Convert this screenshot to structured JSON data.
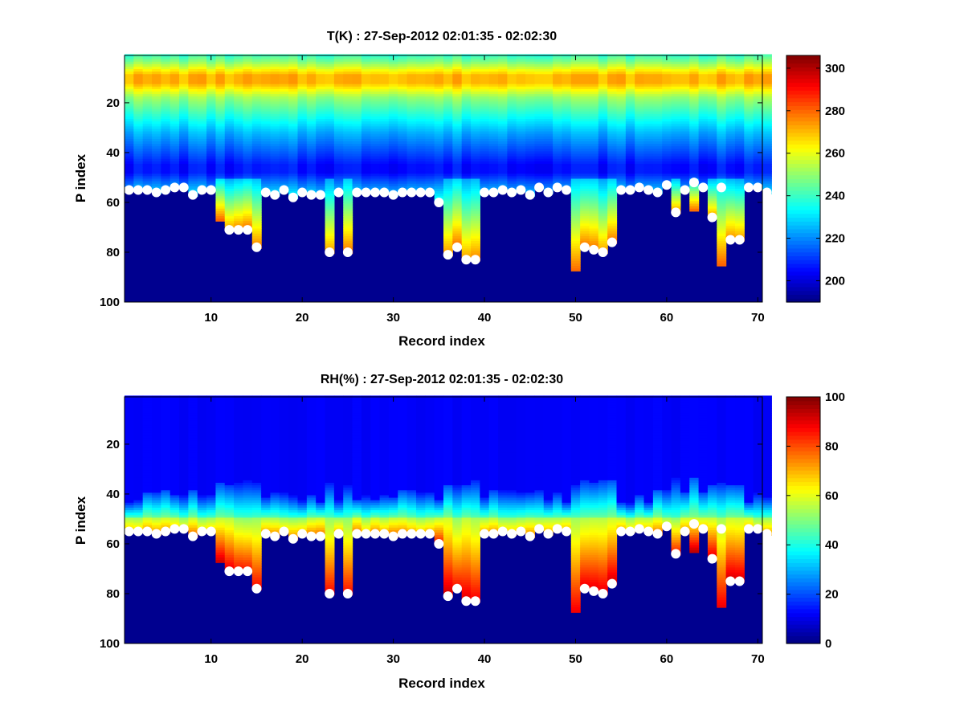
{
  "colormap": "jet",
  "mask_color": "#00008f",
  "marker_color": "#ffffff",
  "chart_data": [
    {
      "type": "heatmap",
      "title": "T(K) : 27-Sep-2012 02:01:35 - 02:02:30",
      "xlabel": "Record index",
      "ylabel": "P index",
      "x_ticks": [
        10,
        20,
        30,
        40,
        50,
        60,
        70
      ],
      "y_ticks": [
        20,
        40,
        60,
        80,
        100
      ],
      "xlim": [
        0.5,
        70.5
      ],
      "ylim": [
        1,
        100
      ],
      "y_reversed": true,
      "colorbar": {
        "min": 190,
        "max": 306,
        "ticks": [
          200,
          220,
          240,
          260,
          280,
          300
        ]
      },
      "surface_index": [
        55,
        55,
        55,
        56,
        55,
        54,
        54,
        57,
        55,
        55,
        67,
        71,
        71,
        71,
        78,
        56,
        57,
        55,
        58,
        56,
        57,
        57,
        80,
        56,
        80,
        56,
        56,
        56,
        56,
        57,
        56,
        56,
        56,
        56,
        60,
        81,
        78,
        83,
        83,
        56,
        56,
        55,
        56,
        55,
        57,
        54,
        56,
        54,
        55,
        87,
        78,
        79,
        80,
        76,
        55,
        55,
        54,
        55,
        56,
        53,
        64,
        55,
        63,
        54,
        66,
        85,
        75,
        75,
        54,
        54,
        56
      ],
      "marker_index": [
        55,
        55,
        55,
        56,
        55,
        54,
        54,
        57,
        55,
        55,
        null,
        71,
        71,
        71,
        78,
        56,
        57,
        55,
        58,
        56,
        57,
        57,
        80,
        56,
        80,
        56,
        56,
        56,
        56,
        57,
        56,
        56,
        56,
        56,
        60,
        81,
        78,
        83,
        83,
        56,
        56,
        55,
        56,
        55,
        57,
        54,
        56,
        54,
        55,
        null,
        78,
        79,
        80,
        76,
        55,
        55,
        54,
        55,
        56,
        53,
        64,
        55,
        52,
        54,
        66,
        54,
        75,
        75,
        54,
        54,
        56
      ]
    },
    {
      "type": "heatmap",
      "title": "RH(%) : 27-Sep-2012 02:01:35 - 02:02:30",
      "xlabel": "Record index",
      "ylabel": "P index",
      "x_ticks": [
        10,
        20,
        30,
        40,
        50,
        60,
        70
      ],
      "y_ticks": [
        20,
        40,
        60,
        80,
        100
      ],
      "xlim": [
        0.5,
        70.5
      ],
      "ylim": [
        1,
        100
      ],
      "y_reversed": true,
      "colorbar": {
        "min": 0,
        "max": 100,
        "ticks": [
          0,
          20,
          40,
          60,
          80,
          100
        ]
      },
      "surface_index": [
        55,
        55,
        55,
        56,
        55,
        54,
        54,
        57,
        55,
        55,
        67,
        71,
        71,
        71,
        78,
        56,
        57,
        55,
        58,
        56,
        57,
        57,
        80,
        56,
        80,
        56,
        56,
        56,
        56,
        57,
        56,
        56,
        56,
        56,
        60,
        81,
        78,
        83,
        83,
        56,
        56,
        55,
        56,
        55,
        57,
        54,
        56,
        54,
        55,
        87,
        78,
        79,
        80,
        76,
        55,
        55,
        54,
        55,
        56,
        53,
        64,
        55,
        63,
        54,
        66,
        85,
        75,
        75,
        54,
        54,
        56
      ],
      "marker_index": [
        55,
        55,
        55,
        56,
        55,
        54,
        54,
        57,
        55,
        55,
        null,
        71,
        71,
        71,
        78,
        56,
        57,
        55,
        58,
        56,
        57,
        57,
        80,
        56,
        80,
        56,
        56,
        56,
        56,
        57,
        56,
        56,
        56,
        56,
        60,
        81,
        78,
        83,
        83,
        56,
        56,
        55,
        56,
        55,
        57,
        54,
        56,
        54,
        55,
        null,
        78,
        79,
        80,
        76,
        55,
        55,
        54,
        55,
        56,
        53,
        64,
        55,
        52,
        54,
        66,
        54,
        75,
        75,
        54,
        54,
        56
      ]
    }
  ]
}
